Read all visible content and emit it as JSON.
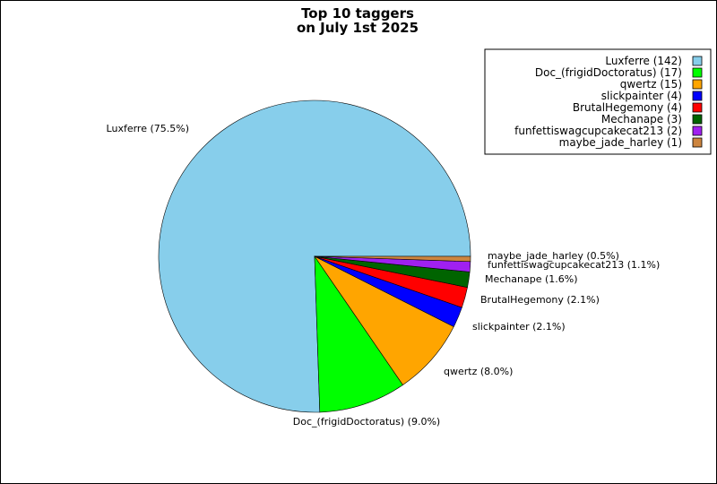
{
  "chart_data": {
    "type": "pie",
    "title_lines": [
      "Top 10 taggers",
      "on July 1st 2025"
    ],
    "legend_position": "top-right",
    "slices": [
      {
        "name": "Luxferre",
        "value": 142,
        "percent_label": "Luxferre (75.5%)",
        "legend_label": "Luxferre (142)",
        "color": "#87CEEB"
      },
      {
        "name": "Doc_(frigidDoctoratus)",
        "value": 17,
        "percent_label": "Doc_(frigidDoctoratus) (9.0%)",
        "legend_label": "Doc_(frigidDoctoratus) (17)",
        "color": "#00FF00"
      },
      {
        "name": "qwertz",
        "value": 15,
        "percent_label": "qwertz (8.0%)",
        "legend_label": "qwertz (15)",
        "color": "#FFA500"
      },
      {
        "name": "slickpainter",
        "value": 4,
        "percent_label": "slickpainter (2.1%)",
        "legend_label": "slickpainter (4)",
        "color": "#0000FF"
      },
      {
        "name": "BrutalHegemony",
        "value": 4,
        "percent_label": "BrutalHegemony (2.1%)",
        "legend_label": "BrutalHegemony (4)",
        "color": "#FF0000"
      },
      {
        "name": "Mechanape",
        "value": 3,
        "percent_label": "Mechanape (1.6%)",
        "legend_label": "Mechanape (3)",
        "color": "#006400"
      },
      {
        "name": "funfettiswagcupcakecat213",
        "value": 2,
        "percent_label": "funfettiswagcupcakecat213 (1.1%)",
        "legend_label": "funfettiswagcupcakecat213 (2)",
        "color": "#A020F0"
      },
      {
        "name": "maybe_jade_harley",
        "value": 1,
        "percent_label": "maybe_jade_harley (0.5%)",
        "legend_label": "maybe_jade_harley (1)",
        "color": "#CD853F"
      }
    ]
  }
}
